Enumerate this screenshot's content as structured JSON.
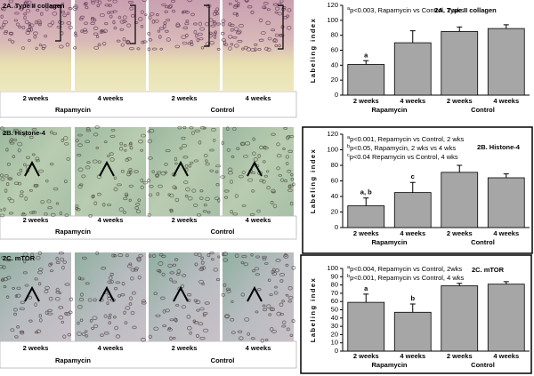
{
  "panels": [
    {
      "title": "2A. Type II collagen",
      "labels": [
        "2 weeks",
        "4 weeks",
        "2 weeks",
        "4 weeks"
      ],
      "groups": [
        "Rapamycin",
        "Control"
      ]
    },
    {
      "title": "2B. Histone-4",
      "labels": [
        "2 weeks",
        "4 weeks",
        "2 weeks",
        "4 weeks"
      ],
      "groups": [
        "Rapamycin",
        "Control"
      ]
    },
    {
      "title": "2C. mTOR",
      "labels": [
        "2 weeks",
        "4 weeks",
        "2 weeks",
        "4 weeks"
      ],
      "groups": [
        "Rapamycin",
        "Control"
      ]
    }
  ],
  "chart_data": [
    {
      "type": "bar",
      "title": "2A. Type II collagen",
      "y_label": "Labeling index",
      "annotations": [
        {
          "sup": "a",
          "text": "p<0.003, Rapamycin vs Control, 2 wks"
        }
      ],
      "categories": [
        "2 weeks",
        "4 weeks",
        "2 weeks",
        "4 weeks"
      ],
      "groups": [
        "Rapamycin",
        "Control"
      ],
      "values": [
        41,
        70,
        85,
        89
      ],
      "errors": [
        5,
        16,
        6,
        5
      ],
      "bar_labels": [
        "a",
        null,
        null,
        null
      ],
      "color": "#a6a6a6",
      "ylim": [
        0,
        120
      ],
      "yticks": [
        0,
        20,
        40,
        60,
        80,
        100,
        120
      ]
    },
    {
      "type": "bar",
      "title": "2B. Histone-4",
      "y_label": "Labeling index",
      "annotations": [
        {
          "sup": "a",
          "text": "p<0.001, Repamycin vs Control,  2 wks"
        },
        {
          "sup": "b",
          "text": "p<0.05, Rapamycin, 2 wks vs 4 wks"
        },
        {
          "sup": "c",
          "text": "p<0.04 Repamycin vs Control, 4 wks"
        }
      ],
      "categories": [
        "2 weeks",
        "4 weeks",
        "2 weeks",
        "4 weeks"
      ],
      "groups": [
        "Rapamycin",
        "Control"
      ],
      "values": [
        28,
        45,
        71,
        64
      ],
      "errors": [
        10,
        13,
        9,
        5
      ],
      "bar_labels": [
        "a, b",
        "c",
        null,
        null
      ],
      "color": "#a6a6a6",
      "ylim": [
        0,
        120
      ],
      "yticks": [
        0,
        20,
        40,
        60,
        80,
        100,
        120
      ]
    },
    {
      "type": "bar",
      "title": "2C. mTOR",
      "y_label": "Labeling index",
      "annotations": [
        {
          "sup": "a",
          "text": "p<0.004, Repamycin vs Control,  2wks"
        },
        {
          "sup": "b",
          "text": "p<0.001, Repamycin vs Control,  4 wks"
        }
      ],
      "categories": [
        "2 weeks",
        "4 weeks",
        "2 weeks",
        "4 weeks"
      ],
      "groups": [
        "Rapamycin",
        "Control"
      ],
      "values": [
        59,
        47,
        79,
        81
      ],
      "errors": [
        10,
        10,
        3,
        3
      ],
      "bar_labels": [
        "a",
        "b",
        null,
        null
      ],
      "color": "#a6a6a6",
      "ylim": [
        0,
        100
      ],
      "yticks": [
        0,
        10,
        20,
        30,
        40,
        50,
        60,
        70,
        80,
        90,
        100
      ]
    }
  ]
}
